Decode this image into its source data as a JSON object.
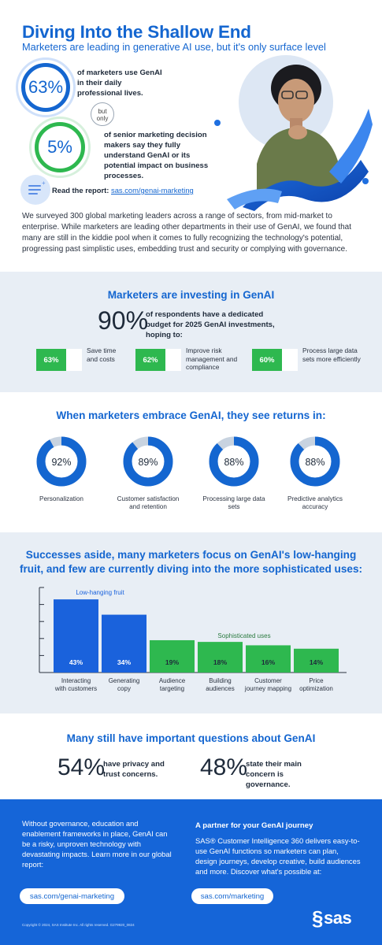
{
  "header": {
    "title": "Diving Into the Shallow End",
    "subtitle": "Marketers are leading in generative AI use, but it's only surface level"
  },
  "stats": {
    "stat1_value": "63%",
    "stat1_text": "of marketers use GenAI in their daily professional lives.",
    "connector": "but only",
    "stat2_value": "5%",
    "stat2_text": "of senior marketing decision makers say they fully understand GenAI or its potential impact on business processes."
  },
  "report": {
    "label": "Read the report:",
    "link": "sas.com/genai-marketing"
  },
  "intro": "We surveyed 300 global marketing leaders across a range of sectors, from mid-market to enterprise. While marketers are leading other departments in their use of GenAI, we found that many are still in the kiddie pool when it comes to fully recognizing the technology's potential, progressing past simplistic uses, embedding trust and security or complying with governance.",
  "investing": {
    "heading": "Marketers are investing in GenAI",
    "big_value": "90%",
    "big_text": "of respondents have a dedicated budget for 2025 GenAI investments, hoping to:",
    "items": [
      {
        "value": "63%",
        "label": "Save time and costs"
      },
      {
        "value": "62%",
        "label": "Improve risk management and compliance"
      },
      {
        "value": "60%",
        "label": "Process large data sets more efficiently"
      }
    ]
  },
  "returns": {
    "heading": "When marketers embrace GenAI, they see returns in:",
    "items": [
      {
        "value": 92,
        "display": "92%",
        "label": "Personalization"
      },
      {
        "value": 89,
        "display": "89%",
        "label": "Customer satisfaction and retention"
      },
      {
        "value": 88,
        "display": "88%",
        "label": "Processing large data sets"
      },
      {
        "value": 88,
        "display": "88%",
        "label": "Predictive analytics accuracy"
      }
    ]
  },
  "chart_data": {
    "type": "bar",
    "title": "Successes aside, many marketers focus on GenAI's low-hanging fruit, and few are currently diving into the more sophisticated uses:",
    "categories": [
      "Interacting with customers",
      "Generating copy",
      "Audience targeting",
      "Building audiences",
      "Customer journey mapping",
      "Price optimization"
    ],
    "values": [
      43,
      34,
      19,
      18,
      16,
      14
    ],
    "value_labels": [
      "43%",
      "34%",
      "19%",
      "18%",
      "16%",
      "14%"
    ],
    "groups": [
      {
        "name": "Low-hanging fruit",
        "indices": [
          0,
          1
        ],
        "color": "#1a62dc"
      },
      {
        "name": "Sophisticated uses",
        "indices": [
          2,
          3,
          4,
          5
        ],
        "color": "#2eb84f"
      }
    ],
    "ylim": [
      0,
      50
    ],
    "grid": false
  },
  "questions": {
    "heading": "Many still have important questions about GenAI",
    "q1_value": "54%",
    "q1_text": "have privacy and trust concerns.",
    "q2_value": "48%",
    "q2_text": "state their main concern is governance."
  },
  "footer": {
    "left_text": "Without governance, education and enablement frameworks in place, GenAI can be a risky, unproven technology with devastating impacts. Learn more in our global report:",
    "left_link": "sas.com/genai-marketing",
    "right_heading": "A partner for your GenAI journey",
    "right_text": "SAS® Customer Intelligence 360 delivers easy-to-use GenAI functions so marketers can plan, design journeys, develop creative, build audiences and more. Discover what's possible at:",
    "right_link": "sas.com/marketing",
    "copyright": "Copyright © 2024, SAS Institute Inc. All rights reserved. G279920_0824",
    "logo": "sas"
  },
  "colors": {
    "blue": "#1466d0",
    "green": "#2eb84f",
    "panel": "#e8eef5",
    "footer_blue": "#1565d8"
  }
}
